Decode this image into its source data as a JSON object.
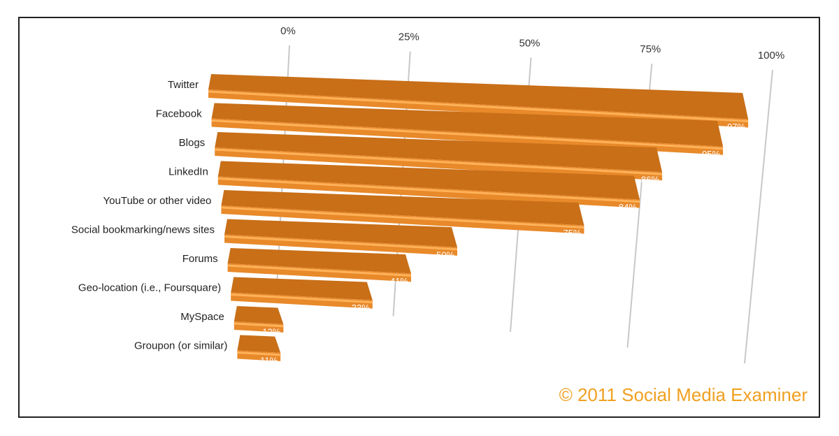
{
  "chart_data": {
    "type": "bar3d",
    "categories": [
      "Twitter",
      "Facebook",
      "Blogs",
      "LinkedIn",
      "YouTube or other video",
      "Social bookmarking/news sites",
      "Forums",
      "Geo-location (i.e., Foursquare)",
      "MySpace",
      "Groupon (or similar)"
    ],
    "values": [
      97,
      95,
      86,
      84,
      75,
      50,
      41,
      33,
      12,
      11
    ],
    "value_labels": [
      "97%",
      "95%",
      "86%",
      "84%",
      "75%",
      "50%",
      "41%",
      "33%",
      "12%",
      "11%"
    ],
    "color": "#e8892a",
    "xlim": [
      0,
      100
    ],
    "xticks": [
      {
        "value": 0,
        "label": "0%"
      },
      {
        "value": 25,
        "label": "25%"
      },
      {
        "value": 50,
        "label": "50%"
      },
      {
        "value": 75,
        "label": "75%"
      },
      {
        "value": 100,
        "label": "100%"
      }
    ],
    "grid": true,
    "annotation": "© 2011 Social Media Examiner"
  }
}
